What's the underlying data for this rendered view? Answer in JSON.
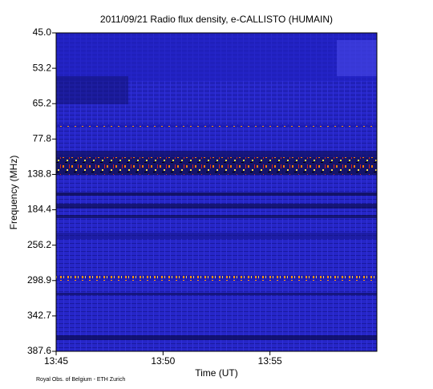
{
  "chart_data": {
    "type": "spectrogram",
    "title": "2011/09/21  Radio flux density, e-CALLISTO (HUMAIN)",
    "x_label": "Time (UT)",
    "y_label": "Frequency (MHz)",
    "credit": "Royal Obs. of Belgium - ETH Zurich",
    "xlim": [
      "13:45",
      "14:00"
    ],
    "xticks": [
      "13:45",
      "13:50",
      "13:55"
    ],
    "ylim": [
      {
        "value": 45,
        "label": "45.0"
      },
      {
        "value": 387.6,
        "label": "387.6"
      }
    ],
    "yticks": [
      {
        "value": 45,
        "label": "45.0"
      },
      {
        "value": 53.2,
        "label": "53.2"
      },
      {
        "value": 65.2,
        "label": "65.2"
      },
      {
        "value": 77.8,
        "label": "77.8"
      },
      {
        "value": 138.8,
        "label": "138.8"
      },
      {
        "value": 184.4,
        "label": "184.4"
      },
      {
        "value": 256.2,
        "label": "256.2"
      },
      {
        "value": 298.9,
        "label": "298.9"
      },
      {
        "value": 342.7,
        "label": "342.7"
      },
      {
        "value": 387.6,
        "label": "387.6"
      }
    ]
  }
}
